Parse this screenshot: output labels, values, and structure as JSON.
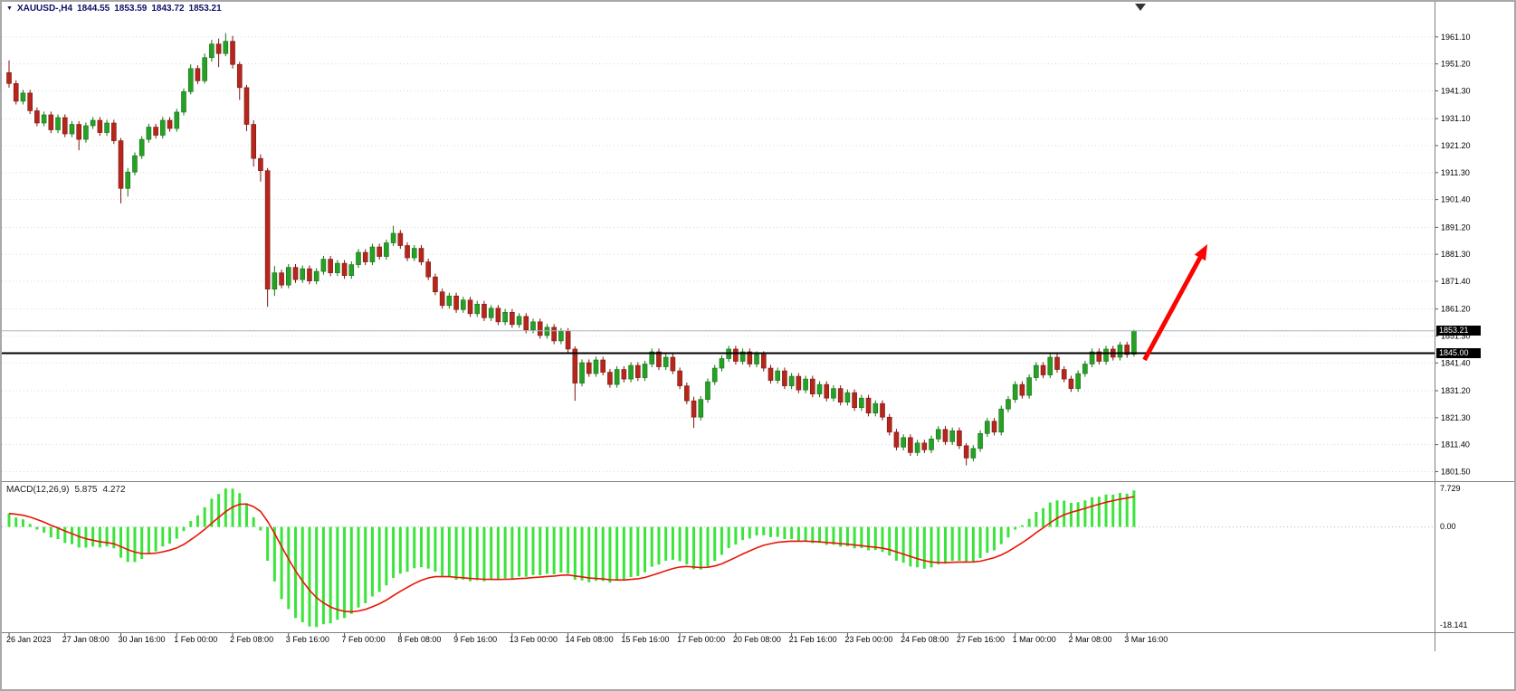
{
  "quote_bar": {
    "dropdown_icon": "▼",
    "title": "XAUUSD-,H4",
    "open": "1844.55",
    "high": "1853.59",
    "low": "1843.72",
    "close": "1853.21"
  },
  "indicator": {
    "name": "MACD(12,26,9)",
    "macd_value": "5.875",
    "signal_value": "4.272"
  },
  "price_axis": {
    "labels": [
      "1961.10",
      "1951.20",
      "1941.30",
      "1931.10",
      "1921.20",
      "1911.30",
      "1901.40",
      "1891.20",
      "1881.30",
      "1871.40",
      "1861.20",
      "1851.30",
      "1841.40",
      "1831.20",
      "1821.30",
      "1811.40",
      "1801.50"
    ]
  },
  "macd_axis": {
    "top": "7.729",
    "zero": "0.00",
    "bottom": "-18.141"
  },
  "time_axis": {
    "label_every_bars": 8,
    "labels": [
      "26 Jan 2023",
      "27 Jan 08:00",
      "30 Jan 16:00",
      "1 Feb 00:00",
      "2 Feb 08:00",
      "3 Feb 16:00",
      "7 Feb 00:00",
      "8 Feb 08:00",
      "9 Feb 16:00",
      "13 Feb 00:00",
      "14 Feb 08:00",
      "15 Feb 16:00",
      "17 Feb 00:00",
      "20 Feb 08:00",
      "21 Feb 16:00",
      "23 Feb 00:00",
      "24 Feb 08:00",
      "27 Feb 16:00",
      "1 Mar 00:00",
      "2 Mar 08:00",
      "3 Mar 16:00"
    ]
  },
  "colors": {
    "background": "#ffffff",
    "bull": "#26a126",
    "bull_border": "#157015",
    "bear": "#b5271d",
    "bear_border": "#7c150e",
    "grid": "#d8d8d8",
    "separator": "#7f7f7f",
    "axis_text": "#000000",
    "quote_text": "#10106a",
    "tag_bg": "#000000",
    "tag_text": "#ffffff",
    "arrow": "#fb0300",
    "macd_histogram": "#3be43b",
    "macd_signal": "#e81505"
  },
  "chart_data": [
    {
      "type": "candlestick",
      "symbol": "XAUUSD",
      "timeframe": "H4",
      "ylim": [
        1798.0,
        1974.0
      ],
      "price_lines": [
        {
          "price": 1845.0,
          "label": "1845.00",
          "color": "#000000",
          "width": 2
        },
        {
          "price": 1853.21,
          "label": "1853.21",
          "color": "#a9b4c2",
          "width": 1
        }
      ],
      "annotations": [
        {
          "type": "arrow",
          "from": {
            "bar": 162.5,
            "price": 1842.5
          },
          "to": {
            "bar": 171.5,
            "price": 1885.0
          },
          "color": "#fb0300",
          "width": 5
        }
      ],
      "candles": [
        [
          1948,
          1952.5,
          1942.5,
          1944
        ],
        [
          1944,
          1945.2,
          1936.3,
          1937.5
        ],
        [
          1937.5,
          1941.7,
          1936.3,
          1940.5
        ],
        [
          1940.5,
          1941.7,
          1932.8,
          1934
        ],
        [
          1934,
          1935.2,
          1928.3,
          1929.5
        ],
        [
          1929.5,
          1933.7,
          1928.3,
          1932.5
        ],
        [
          1932.5,
          1933.7,
          1925.8,
          1927
        ],
        [
          1927,
          1932.7,
          1925.8,
          1931.5
        ],
        [
          1931.5,
          1932.7,
          1924.3,
          1925.5
        ],
        [
          1925.5,
          1930.2,
          1924.3,
          1929
        ],
        [
          1929,
          1930.2,
          1919.5,
          1923.5
        ],
        [
          1923.5,
          1929.7,
          1922.3,
          1928.5
        ],
        [
          1928.5,
          1931.7,
          1927.3,
          1930.5
        ],
        [
          1930.5,
          1931.7,
          1924.8,
          1926
        ],
        [
          1926,
          1930.7,
          1924.8,
          1929.5
        ],
        [
          1929.5,
          1930.7,
          1921.8,
          1923
        ],
        [
          1923,
          1924,
          1900,
          1905.5
        ],
        [
          1905.5,
          1913,
          1902.5,
          1911.5
        ],
        [
          1911.5,
          1918.7,
          1910.3,
          1917.5
        ],
        [
          1917.5,
          1924.7,
          1916.3,
          1923.5
        ],
        [
          1923.5,
          1929.2,
          1922.3,
          1928
        ],
        [
          1928,
          1929.2,
          1923.8,
          1925
        ],
        [
          1925,
          1931.7,
          1923.8,
          1930.5
        ],
        [
          1930.5,
          1931.7,
          1926.3,
          1927.5
        ],
        [
          1927.5,
          1934.7,
          1926.3,
          1933.5
        ],
        [
          1933.5,
          1942.2,
          1932.3,
          1941
        ],
        [
          1941,
          1951,
          1940,
          1949.5
        ],
        [
          1949.5,
          1950.7,
          1943.8,
          1945
        ],
        [
          1945,
          1955,
          1944,
          1953.5
        ],
        [
          1953.5,
          1960,
          1952,
          1958.5
        ],
        [
          1958.5,
          1960.5,
          1950,
          1955
        ],
        [
          1955,
          1962.5,
          1954,
          1959.5
        ],
        [
          1959.5,
          1961.5,
          1949.5,
          1951
        ],
        [
          1951,
          1952,
          1938,
          1942.5
        ],
        [
          1942.5,
          1943.5,
          1926.5,
          1929
        ],
        [
          1929,
          1930.5,
          1913.5,
          1916.5
        ],
        [
          1916.5,
          1918,
          1908,
          1912
        ],
        [
          1912,
          1913,
          1862,
          1868.5
        ],
        [
          1868.5,
          1877,
          1866,
          1874.5
        ],
        [
          1874.5,
          1875.7,
          1868.8,
          1870
        ],
        [
          1870,
          1877.7,
          1868.8,
          1876.5
        ],
        [
          1876.5,
          1877.7,
          1870.8,
          1872
        ],
        [
          1872,
          1877.2,
          1870.8,
          1876
        ],
        [
          1876,
          1877.2,
          1870.3,
          1871.5
        ],
        [
          1871.5,
          1876.2,
          1870.3,
          1875
        ],
        [
          1875,
          1880.7,
          1873.8,
          1879.5
        ],
        [
          1879.5,
          1880.7,
          1873.3,
          1874.5
        ],
        [
          1874.5,
          1879.2,
          1873.3,
          1878
        ],
        [
          1878,
          1879.2,
          1872.3,
          1873.5
        ],
        [
          1873.5,
          1878.7,
          1872.3,
          1877.5
        ],
        [
          1877.5,
          1883.2,
          1876.3,
          1882
        ],
        [
          1882,
          1883.2,
          1877.3,
          1878.5
        ],
        [
          1878.5,
          1885.2,
          1877.3,
          1884
        ],
        [
          1884,
          1885.2,
          1879.3,
          1880.5
        ],
        [
          1880.5,
          1886.7,
          1879.3,
          1885.5
        ],
        [
          1885.5,
          1891.8,
          1884.3,
          1889
        ],
        [
          1889,
          1890.2,
          1883.3,
          1884.5
        ],
        [
          1884.5,
          1885.7,
          1878.8,
          1880
        ],
        [
          1880,
          1884.7,
          1878.8,
          1883.5
        ],
        [
          1883.5,
          1884.7,
          1877.3,
          1878.5
        ],
        [
          1878.5,
          1879.7,
          1871.8,
          1873
        ],
        [
          1873,
          1874.2,
          1866.3,
          1867.5
        ],
        [
          1867.5,
          1868.7,
          1861.3,
          1862.5
        ],
        [
          1862.5,
          1867.2,
          1861.3,
          1866
        ],
        [
          1866,
          1867.2,
          1859.8,
          1861
        ],
        [
          1861,
          1865.7,
          1859.8,
          1864.5
        ],
        [
          1864.5,
          1865.7,
          1858.3,
          1859.5
        ],
        [
          1859.5,
          1864.2,
          1858.3,
          1863
        ],
        [
          1863,
          1864.2,
          1856.8,
          1858
        ],
        [
          1858,
          1862.7,
          1856.8,
          1861.5
        ],
        [
          1861.5,
          1862.7,
          1855.3,
          1856.5
        ],
        [
          1856.5,
          1861.2,
          1855.3,
          1860
        ],
        [
          1860,
          1861.2,
          1854.3,
          1855.5
        ],
        [
          1855.5,
          1859.7,
          1854.3,
          1858.5
        ],
        [
          1858.5,
          1859.7,
          1852.3,
          1853.5
        ],
        [
          1853.5,
          1857.7,
          1852.3,
          1856.5
        ],
        [
          1856.5,
          1857.7,
          1850.3,
          1851.5
        ],
        [
          1851.5,
          1855.7,
          1850.3,
          1854.5
        ],
        [
          1854.5,
          1855.7,
          1848.3,
          1849.5
        ],
        [
          1849.5,
          1854.2,
          1848.3,
          1853
        ],
        [
          1853,
          1854.2,
          1845.3,
          1846.5
        ],
        [
          1846.5,
          1847.5,
          1827.5,
          1834
        ],
        [
          1834,
          1842.7,
          1832.8,
          1841.5
        ],
        [
          1841.5,
          1842.7,
          1836.3,
          1837.5
        ],
        [
          1837.5,
          1843.7,
          1836.3,
          1842.5
        ],
        [
          1842.5,
          1843.7,
          1836.8,
          1838
        ],
        [
          1838,
          1839.2,
          1832.3,
          1833.5
        ],
        [
          1833.5,
          1840.2,
          1832.3,
          1839
        ],
        [
          1839,
          1840.2,
          1834.3,
          1835.5
        ],
        [
          1835.5,
          1841.7,
          1834.3,
          1840.5
        ],
        [
          1840.5,
          1841.7,
          1834.8,
          1836
        ],
        [
          1836,
          1842.2,
          1834.8,
          1841
        ],
        [
          1841,
          1846.7,
          1839.8,
          1845.5
        ],
        [
          1845.5,
          1846.7,
          1838.8,
          1840
        ],
        [
          1840,
          1844.7,
          1838.8,
          1843.5
        ],
        [
          1843.5,
          1844.7,
          1837.3,
          1838.5
        ],
        [
          1838.5,
          1839.7,
          1831.8,
          1833
        ],
        [
          1833,
          1834.2,
          1826.3,
          1827.5
        ],
        [
          1827.5,
          1829,
          1817.5,
          1821.5
        ],
        [
          1821.5,
          1829.2,
          1820.3,
          1828
        ],
        [
          1828,
          1835.7,
          1826.8,
          1834.5
        ],
        [
          1834.5,
          1840.7,
          1833.3,
          1839.5
        ],
        [
          1839.5,
          1844.2,
          1838.3,
          1843
        ],
        [
          1843,
          1847.7,
          1841.8,
          1846.5
        ],
        [
          1846.5,
          1847.7,
          1840.8,
          1842
        ],
        [
          1842,
          1846.7,
          1840.8,
          1845.5
        ],
        [
          1845.5,
          1846.7,
          1839.8,
          1841
        ],
        [
          1841,
          1845.7,
          1839.8,
          1844.5
        ],
        [
          1844.5,
          1845.7,
          1838.3,
          1839.5
        ],
        [
          1839.5,
          1840.7,
          1833.8,
          1835
        ],
        [
          1835,
          1839.7,
          1833.8,
          1838.5
        ],
        [
          1838.5,
          1839.7,
          1831.8,
          1833
        ],
        [
          1833,
          1837.7,
          1831.8,
          1836.5
        ],
        [
          1836.5,
          1837.7,
          1830.3,
          1831.5
        ],
        [
          1831.5,
          1836.7,
          1830.3,
          1835.5
        ],
        [
          1835.5,
          1836.7,
          1828.8,
          1830
        ],
        [
          1830,
          1834.7,
          1828.8,
          1833.5
        ],
        [
          1833.5,
          1834.7,
          1827.3,
          1828.5
        ],
        [
          1828.5,
          1833.2,
          1827.3,
          1832
        ],
        [
          1832,
          1833.2,
          1825.8,
          1827
        ],
        [
          1827,
          1831.7,
          1825.8,
          1830.5
        ],
        [
          1830.5,
          1831.7,
          1823.8,
          1825
        ],
        [
          1825,
          1829.7,
          1823.8,
          1828.5
        ],
        [
          1828.5,
          1829.7,
          1821.8,
          1823
        ],
        [
          1823,
          1827.7,
          1821.8,
          1826.5
        ],
        [
          1826.5,
          1827.7,
          1820.3,
          1821.5
        ],
        [
          1821.5,
          1822.7,
          1814.8,
          1816
        ],
        [
          1816,
          1817.2,
          1809.3,
          1810.5
        ],
        [
          1810.5,
          1815.2,
          1809.3,
          1814
        ],
        [
          1814,
          1815.2,
          1807.3,
          1808.5
        ],
        [
          1808.5,
          1813.2,
          1807.3,
          1812
        ],
        [
          1812,
          1813.2,
          1808.3,
          1809.5
        ],
        [
          1809.5,
          1814.7,
          1808.3,
          1813.5
        ],
        [
          1813.5,
          1818.2,
          1812.3,
          1817
        ],
        [
          1817,
          1818.2,
          1811.3,
          1812.5
        ],
        [
          1812.5,
          1817.7,
          1811.3,
          1816.5
        ],
        [
          1816.5,
          1817.7,
          1809.8,
          1811
        ],
        [
          1811,
          1812,
          1803.8,
          1806.5
        ],
        [
          1806.5,
          1811.2,
          1805.3,
          1810
        ],
        [
          1810,
          1816.7,
          1808.8,
          1815.5
        ],
        [
          1815.5,
          1821.2,
          1814.3,
          1820
        ],
        [
          1820,
          1821.2,
          1814.8,
          1816
        ],
        [
          1816,
          1825.7,
          1814.8,
          1824.5
        ],
        [
          1824.5,
          1829.2,
          1823.3,
          1828
        ],
        [
          1828,
          1834.7,
          1826.8,
          1833.5
        ],
        [
          1833.5,
          1834.7,
          1828.3,
          1829.5
        ],
        [
          1829.5,
          1837.2,
          1828.3,
          1836
        ],
        [
          1836,
          1841.7,
          1834.8,
          1840.5
        ],
        [
          1840.5,
          1841.7,
          1835.8,
          1837
        ],
        [
          1837,
          1845.2,
          1835.8,
          1843.5
        ],
        [
          1843.5,
          1844.7,
          1837.8,
          1839
        ],
        [
          1839,
          1840.2,
          1834.3,
          1835.5
        ],
        [
          1835.5,
          1836.7,
          1830.8,
          1832
        ],
        [
          1832,
          1838.7,
          1830.8,
          1837.5
        ],
        [
          1837.5,
          1842.2,
          1836.3,
          1841
        ],
        [
          1841,
          1846.7,
          1839.8,
          1845.5
        ],
        [
          1845.5,
          1846.7,
          1840.8,
          1842
        ],
        [
          1842,
          1847.7,
          1840.8,
          1846.5
        ],
        [
          1846.5,
          1847.7,
          1842.3,
          1843.5
        ],
        [
          1843.5,
          1849.2,
          1842.3,
          1848
        ],
        [
          1848,
          1849.2,
          1843.3,
          1844.5
        ],
        [
          1844.6,
          1853.6,
          1843.7,
          1853.2
        ]
      ]
    },
    {
      "type": "macd",
      "fast": 12,
      "slow": 26,
      "signal": 9,
      "ylim": [
        -18.141,
        7.729
      ],
      "current_macd": 5.875,
      "current_signal": 4.272
    }
  ]
}
